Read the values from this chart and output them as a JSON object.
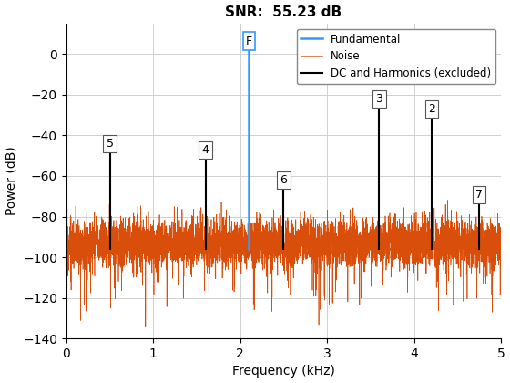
{
  "title": "SNR:  55.23 dB",
  "xlabel": "Frequency (kHz)",
  "ylabel": "Power (dB)",
  "xlim": [
    0,
    5.0
  ],
  "ylim": [
    -140,
    15
  ],
  "yticks": [
    0,
    -20,
    -40,
    -60,
    -80,
    -100,
    -120,
    -140
  ],
  "xticks": [
    0,
    1,
    2,
    3,
    4,
    5
  ],
  "noise_color": "#D94E0A",
  "fundamental_color": "#3399FF",
  "harmonic_color": "#000000",
  "fundamental_freq": 2.1,
  "fundamental_power": 3.0,
  "harmonics": [
    {
      "label": "2",
      "freq": 4.2,
      "power": -30.0,
      "label_power": -30.0
    },
    {
      "label": "3",
      "freq": 3.6,
      "power": -25.0,
      "label_power": -25.0
    },
    {
      "label": "4",
      "freq": 1.6,
      "power": -50.0,
      "label_power": -50.0
    },
    {
      "label": "5",
      "freq": 0.5,
      "power": -47.0,
      "label_power": -47.0
    },
    {
      "label": "6",
      "freq": 2.5,
      "power": -65.0,
      "label_power": -65.0
    },
    {
      "label": "7",
      "freq": 4.75,
      "power": -72.0,
      "label_power": -72.0
    }
  ],
  "noise_floor": -93,
  "noise_std": 6,
  "noise_seed": 12,
  "noise_n": 5000,
  "legend_entries": [
    "Fundamental",
    "Noise",
    "DC and Harmonics (excluded)"
  ],
  "grid_color": "#D0D0D0",
  "bg_color": "#FFFFFF",
  "fundamental_label": "F",
  "fundamental_label_power": 3.5,
  "figsize": [
    5.6,
    4.2
  ],
  "dpi": 100
}
